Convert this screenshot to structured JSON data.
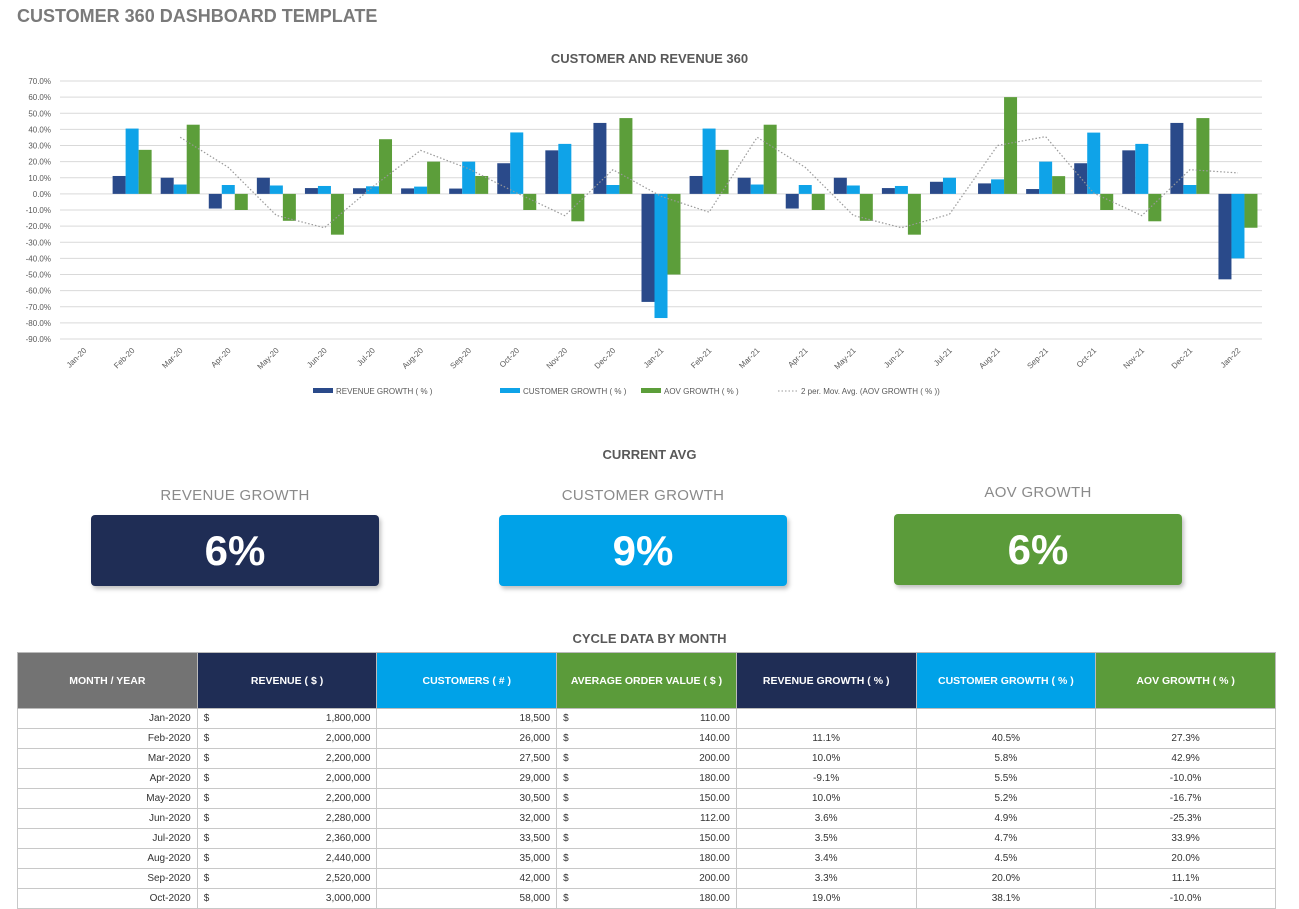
{
  "title": "CUSTOMER 360 DASHBOARD TEMPLATE",
  "chart_data": {
    "type": "bar",
    "title": "CUSTOMER AND REVENUE 360",
    "categories": [
      "Jan-20",
      "Feb-20",
      "Mar-20",
      "Apr-20",
      "May-20",
      "Jun-20",
      "Jul-20",
      "Aug-20",
      "Sep-20",
      "Oct-20",
      "Nov-20",
      "Dec-20",
      "Jan-21",
      "Feb-21",
      "Mar-21",
      "Apr-21",
      "May-21",
      "Jun-21",
      "Jul-21",
      "Aug-21",
      "Sep-21",
      "Oct-21",
      "Nov-21",
      "Dec-21",
      "Jan-22"
    ],
    "ylim": [
      -90,
      70
    ],
    "yticks": [
      "70.0%",
      "60.0%",
      "50.0%",
      "40.0%",
      "30.0%",
      "20.0%",
      "10.0%",
      "0.0%",
      "-10.0%",
      "-20.0%",
      "-30.0%",
      "-40.0%",
      "-50.0%",
      "-60.0%",
      "-70.0%",
      "-80.0%",
      "-90.0%"
    ],
    "grid": true,
    "legend_position": "bottom",
    "series": [
      {
        "name": "REVENUE GROWTH  ( % )",
        "color": "#2a4a8a",
        "values": [
          null,
          11.1,
          10.0,
          -9.1,
          10.0,
          3.6,
          3.5,
          3.4,
          3.3,
          19.0,
          27,
          44,
          -67,
          11.1,
          10.0,
          -9.1,
          10.0,
          3.6,
          7.5,
          6.5,
          3,
          19,
          27,
          44,
          -53
        ]
      },
      {
        "name": "CUSTOMER GROWTH  ( % )",
        "color": "#0fa3e8",
        "values": [
          null,
          40.5,
          5.8,
          5.5,
          5.2,
          4.9,
          4.7,
          4.5,
          20.0,
          38.1,
          31,
          5.5,
          -77,
          40.5,
          5.8,
          5.5,
          5.2,
          4.9,
          10,
          9,
          20,
          38,
          31,
          5.5,
          -40
        ]
      },
      {
        "name": "AOV GROWTH  ( % )",
        "color": "#5c9e3a",
        "values": [
          null,
          27.3,
          42.9,
          -10.0,
          -16.7,
          -25.3,
          33.9,
          20.0,
          11.1,
          -10.0,
          -17,
          47,
          -50,
          27.3,
          42.9,
          -10.0,
          -16.7,
          -25.3,
          0,
          60,
          11,
          -10,
          -17,
          47,
          -21
        ]
      }
    ],
    "trendline": {
      "name": "2 per. Mov. Avg.  (AOV GROWTH  ( % ))",
      "period": 2,
      "color": "#999999"
    }
  },
  "current_avg": {
    "heading": "CURRENT AVG",
    "revenue": {
      "label": "REVENUE GROWTH",
      "value": "6%",
      "color": "#1f2d55"
    },
    "customer": {
      "label": "CUSTOMER GROWTH",
      "value": "9%",
      "color": "#00a2e8"
    },
    "aov": {
      "label": "AOV GROWTH",
      "value": "6%",
      "color": "#5b9b3a"
    }
  },
  "table": {
    "heading": "CYCLE DATA BY MONTH",
    "headers": [
      "MONTH / YEAR",
      "REVENUE  ( $ )",
      "CUSTOMERS  ( # )",
      "AVERAGE ORDER VALUE  ( $ )",
      "REVENUE GROWTH  ( % )",
      "CUSTOMER GROWTH  ( % )",
      "AOV GROWTH  ( % )"
    ],
    "header_colors": [
      "#737373",
      "#1f2d55",
      "#00a2e8",
      "#5b9b3a",
      "#1f2d55",
      "#00a2e8",
      "#5b9b3a"
    ],
    "currency": "$",
    "rows": [
      [
        "Jan-2020",
        "1,800,000",
        "18,500",
        "110.00",
        "",
        "",
        ""
      ],
      [
        "Feb-2020",
        "2,000,000",
        "26,000",
        "140.00",
        "11.1%",
        "40.5%",
        "27.3%"
      ],
      [
        "Mar-2020",
        "2,200,000",
        "27,500",
        "200.00",
        "10.0%",
        "5.8%",
        "42.9%"
      ],
      [
        "Apr-2020",
        "2,000,000",
        "29,000",
        "180.00",
        "-9.1%",
        "5.5%",
        "-10.0%"
      ],
      [
        "May-2020",
        "2,200,000",
        "30,500",
        "150.00",
        "10.0%",
        "5.2%",
        "-16.7%"
      ],
      [
        "Jun-2020",
        "2,280,000",
        "32,000",
        "112.00",
        "3.6%",
        "4.9%",
        "-25.3%"
      ],
      [
        "Jul-2020",
        "2,360,000",
        "33,500",
        "150.00",
        "3.5%",
        "4.7%",
        "33.9%"
      ],
      [
        "Aug-2020",
        "2,440,000",
        "35,000",
        "180.00",
        "3.4%",
        "4.5%",
        "20.0%"
      ],
      [
        "Sep-2020",
        "2,520,000",
        "42,000",
        "200.00",
        "3.3%",
        "20.0%",
        "11.1%"
      ],
      [
        "Oct-2020",
        "3,000,000",
        "58,000",
        "180.00",
        "19.0%",
        "38.1%",
        "-10.0%"
      ]
    ]
  }
}
